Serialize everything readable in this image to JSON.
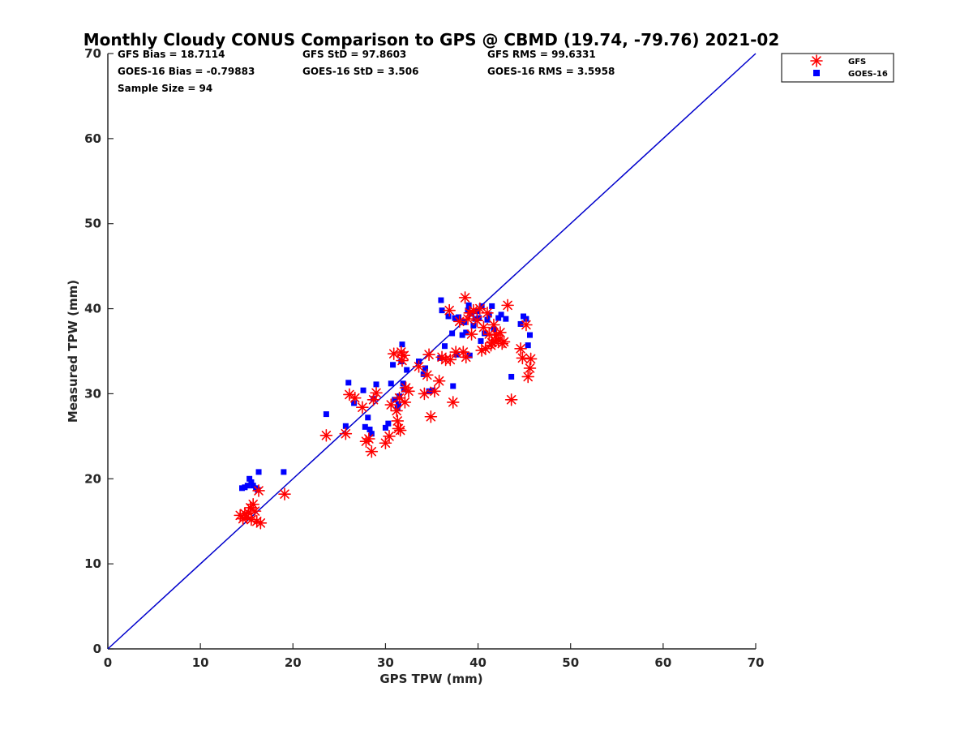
{
  "chart_data": {
    "type": "scatter",
    "title": "Monthly Cloudy CONUS Comparison to GPS @ CBMD (19.74, -79.76) 2021-02",
    "xlabel": "GPS TPW (mm)",
    "ylabel": "Measured TPW (mm)",
    "xlim": [
      0,
      70
    ],
    "ylim": [
      0,
      70
    ],
    "x_ticks": [
      0,
      10,
      20,
      30,
      40,
      50,
      60,
      70
    ],
    "y_ticks": [
      0,
      10,
      20,
      30,
      40,
      50,
      60,
      70
    ],
    "grid": false,
    "legend_position": "outside-top-right",
    "stats": [
      "GFS Bias = 18.7114",
      "GOES-16 Bias = -0.79883",
      "Sample Size = 94",
      "GFS StD = 97.8603",
      "GOES-16 StD = 3.506",
      "GFS RMS = 99.6331",
      "GOES-16 RMS = 3.5958"
    ],
    "reference_line": {
      "x": [
        0,
        70
      ],
      "y": [
        0,
        70
      ],
      "color": "#0000cc"
    },
    "series": [
      {
        "name": "GFS",
        "marker": "asterisk",
        "color": "#ff0000",
        "points": [
          [
            14.3,
            15.7
          ],
          [
            14.6,
            15.3
          ],
          [
            14.8,
            15.9
          ],
          [
            15.0,
            15.5
          ],
          [
            15.2,
            16.0
          ],
          [
            15.4,
            16.6
          ],
          [
            15.5,
            15.2
          ],
          [
            15.7,
            17.0
          ],
          [
            15.9,
            16.2
          ],
          [
            16.1,
            15.0
          ],
          [
            16.3,
            18.6
          ],
          [
            16.5,
            14.8
          ],
          [
            19.1,
            18.2
          ],
          [
            23.6,
            25.1
          ],
          [
            25.7,
            25.3
          ],
          [
            26.1,
            29.9
          ],
          [
            26.7,
            29.5
          ],
          [
            27.5,
            28.4
          ],
          [
            27.9,
            24.4
          ],
          [
            28.2,
            24.7
          ],
          [
            28.5,
            23.2
          ],
          [
            28.7,
            29.3
          ],
          [
            29.0,
            30.1
          ],
          [
            30.0,
            24.2
          ],
          [
            30.4,
            25.0
          ],
          [
            30.6,
            28.7
          ],
          [
            30.9,
            34.7
          ],
          [
            31.2,
            28.0
          ],
          [
            31.3,
            26.8
          ],
          [
            31.4,
            25.9
          ],
          [
            31.5,
            29.5
          ],
          [
            31.6,
            25.7
          ],
          [
            31.7,
            34.9
          ],
          [
            31.8,
            33.9
          ],
          [
            32.0,
            34.5
          ],
          [
            32.1,
            29.0
          ],
          [
            32.2,
            30.7
          ],
          [
            32.5,
            30.3
          ],
          [
            33.6,
            33.2
          ],
          [
            34.2,
            30.0
          ],
          [
            34.5,
            32.2
          ],
          [
            34.7,
            34.6
          ],
          [
            34.9,
            27.3
          ],
          [
            35.3,
            30.3
          ],
          [
            35.8,
            31.5
          ],
          [
            36.1,
            34.3
          ],
          [
            36.5,
            34.0
          ],
          [
            36.9,
            39.8
          ],
          [
            37.0,
            34.0
          ],
          [
            37.3,
            29.0
          ],
          [
            37.6,
            34.9
          ],
          [
            38.0,
            38.5
          ],
          [
            38.4,
            34.9
          ],
          [
            38.6,
            41.3
          ],
          [
            38.7,
            34.3
          ],
          [
            38.9,
            38.8
          ],
          [
            39.1,
            39.5
          ],
          [
            39.3,
            37.0
          ],
          [
            39.5,
            39.8
          ],
          [
            39.9,
            38.6
          ],
          [
            40.2,
            40.0
          ],
          [
            40.4,
            35.1
          ],
          [
            40.6,
            37.8
          ],
          [
            40.8,
            35.3
          ],
          [
            41.0,
            39.5
          ],
          [
            41.2,
            37.0
          ],
          [
            41.4,
            35.7
          ],
          [
            41.5,
            36.0
          ],
          [
            41.7,
            38.1
          ],
          [
            41.8,
            36.2
          ],
          [
            42.0,
            36.9
          ],
          [
            42.2,
            36.3
          ],
          [
            42.4,
            37.2
          ],
          [
            42.6,
            35.9
          ],
          [
            42.8,
            36.1
          ],
          [
            43.2,
            40.4
          ],
          [
            43.6,
            29.3
          ],
          [
            44.6,
            35.3
          ],
          [
            44.8,
            34.2
          ],
          [
            45.2,
            38.1
          ],
          [
            45.4,
            32.0
          ],
          [
            45.6,
            33.0
          ],
          [
            45.7,
            34.1
          ]
        ]
      },
      {
        "name": "GOES-16",
        "marker": "square",
        "color": "#0000ff",
        "points": [
          [
            14.5,
            18.9
          ],
          [
            14.8,
            19.0
          ],
          [
            15.1,
            19.2
          ],
          [
            15.3,
            20.0
          ],
          [
            15.5,
            19.6
          ],
          [
            15.7,
            19.2
          ],
          [
            16.0,
            18.9
          ],
          [
            16.2,
            18.7
          ],
          [
            16.3,
            20.8
          ],
          [
            19.0,
            20.8
          ],
          [
            23.6,
            27.6
          ],
          [
            25.7,
            26.2
          ],
          [
            26.0,
            31.3
          ],
          [
            26.6,
            28.9
          ],
          [
            27.6,
            30.4
          ],
          [
            27.8,
            26.1
          ],
          [
            28.1,
            27.2
          ],
          [
            28.3,
            25.8
          ],
          [
            28.5,
            25.3
          ],
          [
            28.7,
            29.4
          ],
          [
            29.0,
            31.1
          ],
          [
            30.0,
            26.0
          ],
          [
            30.3,
            26.5
          ],
          [
            30.6,
            31.2
          ],
          [
            30.8,
            33.4
          ],
          [
            31.0,
            29.3
          ],
          [
            31.3,
            28.3
          ],
          [
            31.4,
            28.8
          ],
          [
            31.5,
            29.7
          ],
          [
            31.7,
            33.8
          ],
          [
            31.8,
            35.8
          ],
          [
            31.9,
            31.2
          ],
          [
            32.0,
            30.5
          ],
          [
            32.3,
            32.8
          ],
          [
            33.6,
            33.8
          ],
          [
            34.1,
            32.3
          ],
          [
            34.3,
            33.0
          ],
          [
            34.7,
            30.3
          ],
          [
            35.1,
            30.4
          ],
          [
            35.9,
            34.2
          ],
          [
            36.0,
            41.0
          ],
          [
            36.1,
            39.8
          ],
          [
            36.4,
            35.6
          ],
          [
            36.8,
            39.1
          ],
          [
            37.2,
            37.1
          ],
          [
            37.3,
            30.9
          ],
          [
            37.5,
            38.9
          ],
          [
            37.7,
            34.6
          ],
          [
            37.9,
            39.0
          ],
          [
            38.3,
            36.9
          ],
          [
            38.5,
            38.4
          ],
          [
            38.7,
            37.2
          ],
          [
            38.9,
            39.8
          ],
          [
            39.0,
            40.4
          ],
          [
            39.1,
            34.5
          ],
          [
            39.3,
            39.4
          ],
          [
            39.5,
            38.0
          ],
          [
            39.7,
            38.8
          ],
          [
            39.9,
            39.7
          ],
          [
            40.1,
            38.9
          ],
          [
            40.3,
            36.2
          ],
          [
            40.4,
            40.3
          ],
          [
            40.7,
            37.1
          ],
          [
            41.0,
            38.7
          ],
          [
            41.2,
            39.3
          ],
          [
            41.5,
            40.3
          ],
          [
            41.7,
            37.6
          ],
          [
            42.2,
            38.9
          ],
          [
            42.5,
            39.3
          ],
          [
            43.0,
            38.8
          ],
          [
            43.6,
            32.0
          ],
          [
            44.6,
            38.2
          ],
          [
            44.9,
            39.1
          ],
          [
            45.2,
            38.8
          ],
          [
            45.4,
            35.7
          ],
          [
            45.6,
            36.9
          ]
        ]
      }
    ]
  }
}
